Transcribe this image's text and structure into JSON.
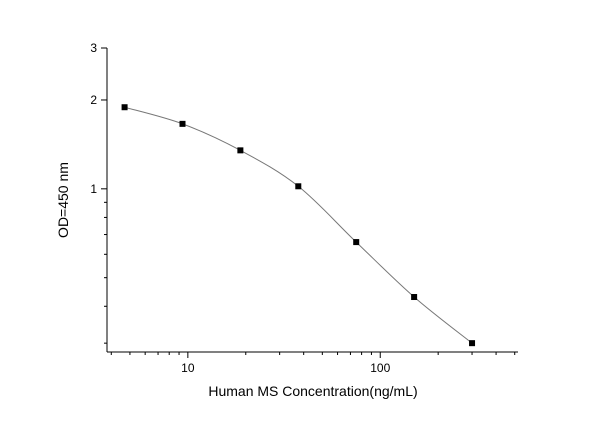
{
  "chart_data": {
    "type": "scatter",
    "title": "",
    "xlabel": "Human MS Concentration(ng/mL)",
    "ylabel": "OD=450 nm",
    "x_scale": "log",
    "y_scale": "log",
    "xlim": [
      3.8,
      520
    ],
    "ylim": [
      0.28,
      3
    ],
    "x_ticks": [
      10,
      100
    ],
    "x_tick_labels": [
      "10",
      "100"
    ],
    "y_ticks": [
      1,
      2,
      3
    ],
    "y_tick_labels": [
      "1",
      "2",
      "3"
    ],
    "grid": false,
    "legend": "none",
    "line_color": "#777777",
    "marker_color": "#000000",
    "series": [
      {
        "x": [
          4.69,
          9.38,
          18.75,
          37.5,
          75,
          150,
          300
        ],
        "y": [
          1.89,
          1.66,
          1.35,
          1.02,
          0.66,
          0.43,
          0.3
        ]
      }
    ]
  }
}
